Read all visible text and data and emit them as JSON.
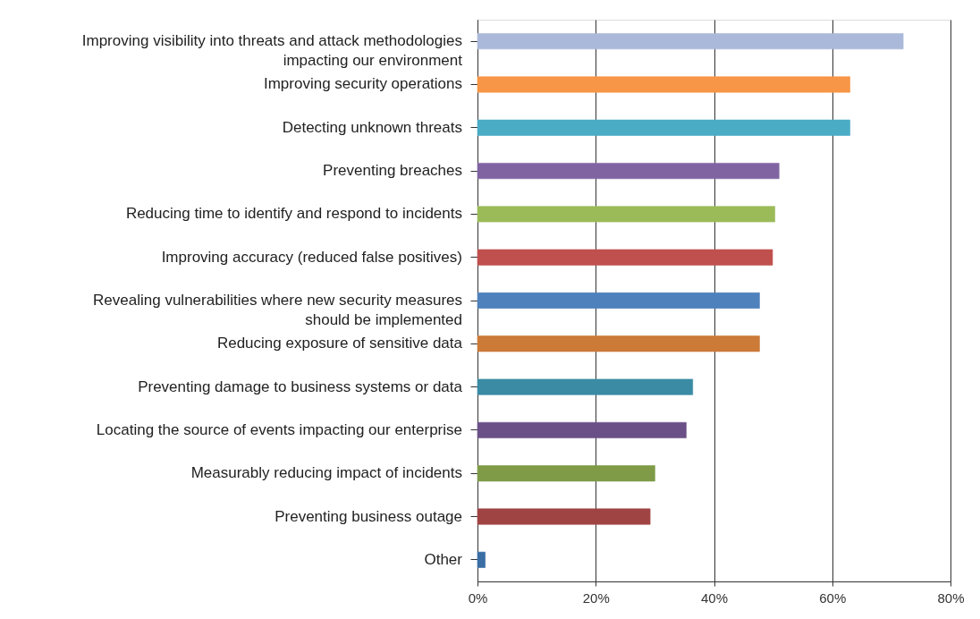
{
  "chart_data": {
    "type": "bar",
    "orientation": "horizontal",
    "categories": [
      "Improving visibility into threats and attack methodologies impacting our environment",
      "Improving security operations",
      "Detecting unknown threats",
      "Preventing breaches",
      "Reducing time to identify and respond to incidents",
      "Improving accuracy (reduced false positives)",
      "Revealing vulnerabilities where new security measures should be implemented",
      "Reducing exposure of sensitive data",
      "Preventing damage to business systems or data",
      "Locating the source of events impacting our enterprise",
      "Measurably reducing impact of incidents",
      "Preventing business outage",
      "Other"
    ],
    "values": [
      72,
      63,
      63,
      51,
      50.3,
      49.9,
      47.7,
      47.7,
      36.4,
      35.3,
      30,
      29.2,
      1.3
    ],
    "colors": [
      "#aab9d9",
      "#f79646",
      "#4bacc6",
      "#8064a2",
      "#9bbb59",
      "#c0504d",
      "#4f81bd",
      "#cc7a38",
      "#3a8ba3",
      "#6a5087",
      "#7f9b48",
      "#a04443",
      "#3a6ea5"
    ],
    "xlim": [
      0,
      80
    ],
    "xticks": [
      {
        "value": 0,
        "label": "0%"
      },
      {
        "value": 20,
        "label": "20%"
      },
      {
        "value": 40,
        "label": "40%"
      },
      {
        "value": 60,
        "label": "60%"
      },
      {
        "value": 80,
        "label": "80%"
      }
    ],
    "grid": "x"
  }
}
